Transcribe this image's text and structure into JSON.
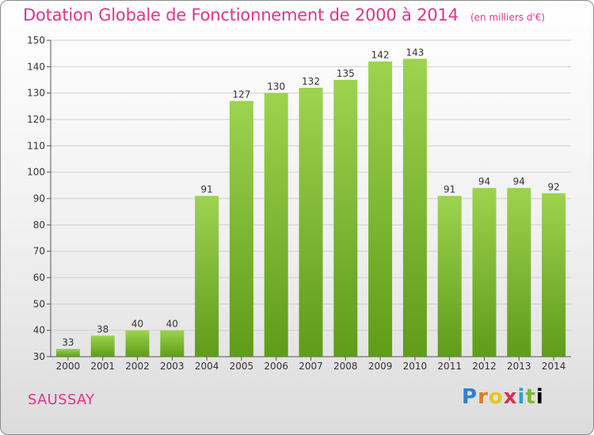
{
  "header": {
    "title": "Dotation Globale de Fonctionnement de 2000 à 2014",
    "subtitle": "(en milliers d'€)"
  },
  "place_name": "SAUSSAY",
  "logo_text": "Proxiti",
  "colors": {
    "title": "#e0348a",
    "bar_top": "#9dd34f",
    "bar_bottom": "#5f9c18"
  },
  "chart_data": {
    "type": "bar",
    "title": "Dotation Globale de Fonctionnement de 2000 à 2014",
    "subtitle": "(en milliers d'€)",
    "categories": [
      "2000",
      "2001",
      "2002",
      "2003",
      "2004",
      "2005",
      "2006",
      "2007",
      "2008",
      "2009",
      "2010",
      "2011",
      "2012",
      "2013",
      "2014"
    ],
    "values": [
      33,
      38,
      40,
      40,
      91,
      127,
      130,
      132,
      135,
      142,
      143,
      91,
      94,
      94,
      92
    ],
    "ylim": [
      30,
      150
    ],
    "yticks": [
      30,
      40,
      50,
      60,
      70,
      80,
      90,
      100,
      110,
      120,
      130,
      140,
      150
    ],
    "grid": true,
    "data_labels": true
  }
}
